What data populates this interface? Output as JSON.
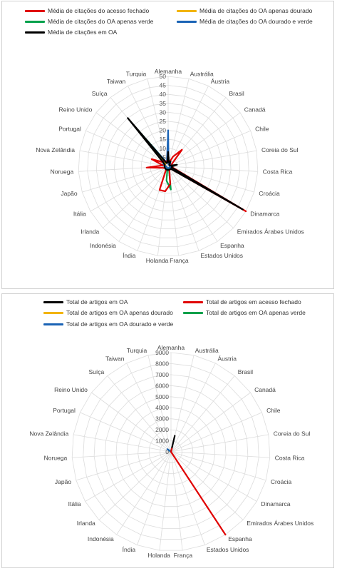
{
  "colors": {
    "black": "#000000",
    "red": "#e00000",
    "yellow": "#f2b400",
    "green": "#00a04a",
    "blue": "#1a63b5",
    "grid": "#dcdcdc"
  },
  "chart_data": [
    {
      "type": "radar",
      "title": "",
      "legend_position": "top",
      "categories": [
        "Alemanha",
        "Austrália",
        "Áustria",
        "Brasil",
        "Canadá",
        "Chile",
        "Coreia do Sul",
        "Costa Rica",
        "Croácia",
        "Dinamarca",
        "Emirados Árabes Unidos",
        "Espanha",
        "Estados Unidos",
        "França",
        "Holanda",
        "Índia",
        "Indonésia",
        "Irlanda",
        "Itália",
        "Japão",
        "Noruega",
        "Nova Zelândia",
        "Portugal",
        "Reino Unido",
        "Suíça",
        "Taiwan",
        "Turquia"
      ],
      "ticks": [
        0,
        5,
        10,
        15,
        20,
        25,
        30,
        35,
        40,
        45,
        50
      ],
      "rmax": 50,
      "series": [
        {
          "name": "Média de citações do acesso fechado",
          "color": "red",
          "values": [
            3,
            2,
            6,
            12,
            3,
            2,
            2,
            2,
            3,
            50,
            2,
            2,
            2,
            10,
            14,
            14,
            2,
            2,
            2,
            3,
            12,
            3,
            10,
            4,
            4,
            3,
            3
          ]
        },
        {
          "name": "Média de citações do OA apenas dourado",
          "color": "yellow",
          "values": [
            2,
            1,
            1,
            1,
            1,
            1,
            1,
            1,
            1,
            1,
            1,
            1,
            1,
            1,
            1,
            1,
            1,
            1,
            1,
            1,
            1,
            2,
            2,
            2,
            25,
            2,
            2
          ]
        },
        {
          "name": "Média de citações do OA apenas verde",
          "color": "green",
          "values": [
            3,
            2,
            1,
            1,
            1,
            2,
            1,
            1,
            1,
            2,
            1,
            1,
            1,
            13,
            8,
            1,
            1,
            1,
            1,
            1,
            2,
            2,
            3,
            3,
            30,
            3,
            3
          ]
        },
        {
          "name": "Média de citações do OA dourado e verde",
          "color": "blue",
          "values": [
            20,
            1,
            1,
            2,
            2,
            1,
            2,
            2,
            1,
            2,
            1,
            1,
            1,
            1,
            1,
            1,
            1,
            1,
            1,
            1,
            1,
            2,
            3,
            3,
            25,
            3,
            3
          ]
        },
        {
          "name": "Média de citações em OA",
          "color": "black",
          "values": [
            8,
            2,
            3,
            1,
            1,
            1,
            5,
            2,
            2,
            48,
            2,
            2,
            2,
            2,
            2,
            2,
            2,
            2,
            2,
            2,
            2,
            2,
            2,
            3,
            35,
            2,
            2
          ]
        }
      ]
    },
    {
      "type": "radar",
      "title": "",
      "legend_position": "top",
      "categories": [
        "Alemanha",
        "Austrália",
        "Áustria",
        "Brasil",
        "Canadá",
        "Chile",
        "Coreia do Sul",
        "Costa Rica",
        "Croácia",
        "Dinamarca",
        "Emirados Árabes Unidos",
        "Espanha",
        "Estados Unidos",
        "França",
        "Holanda",
        "Índia",
        "Indonésia",
        "Irlanda",
        "Itália",
        "Japão",
        "Noruega",
        "Nova Zelândia",
        "Portugal",
        "Reino Unido",
        "Suíça",
        "Taiwan",
        "Turquia"
      ],
      "ticks": [
        0,
        1000,
        2000,
        3000,
        4000,
        5000,
        6000,
        7000,
        8000,
        9000
      ],
      "rmax": 9000,
      "series": [
        {
          "name": "Total de artigos em OA",
          "color": "black",
          "values": [
            0,
            1500,
            0,
            0,
            0,
            0,
            0,
            0,
            0,
            0,
            0,
            0,
            0,
            0,
            0,
            0,
            0,
            0,
            0,
            0,
            0,
            0,
            0,
            0,
            0,
            0,
            0
          ]
        },
        {
          "name": "Total de artigos em acesso fechado",
          "color": "red",
          "values": [
            0,
            300,
            0,
            0,
            0,
            0,
            0,
            0,
            0,
            0,
            0,
            9000,
            0,
            0,
            0,
            0,
            0,
            0,
            0,
            0,
            0,
            0,
            0,
            0,
            0,
            0,
            0
          ]
        },
        {
          "name": "Total de artigos em OA apenas dourado",
          "color": "yellow",
          "values": [
            0,
            0,
            0,
            0,
            0,
            0,
            0,
            0,
            0,
            0,
            0,
            0,
            0,
            0,
            0,
            0,
            0,
            0,
            0,
            0,
            0,
            0,
            0,
            0,
            0,
            0,
            0
          ]
        },
        {
          "name": "Total de artigos em OA apenas verde",
          "color": "green",
          "values": [
            0,
            0,
            0,
            0,
            0,
            0,
            0,
            0,
            0,
            0,
            0,
            0,
            0,
            0,
            0,
            0,
            0,
            0,
            0,
            0,
            0,
            0,
            0,
            300,
            0,
            0,
            0
          ]
        },
        {
          "name": "Total de artigos em OA dourado e verde",
          "color": "blue",
          "values": [
            0,
            0,
            0,
            0,
            0,
            0,
            0,
            0,
            0,
            0,
            0,
            0,
            0,
            0,
            0,
            0,
            0,
            0,
            0,
            0,
            0,
            0,
            0,
            400,
            0,
            0,
            0
          ]
        }
      ]
    }
  ]
}
